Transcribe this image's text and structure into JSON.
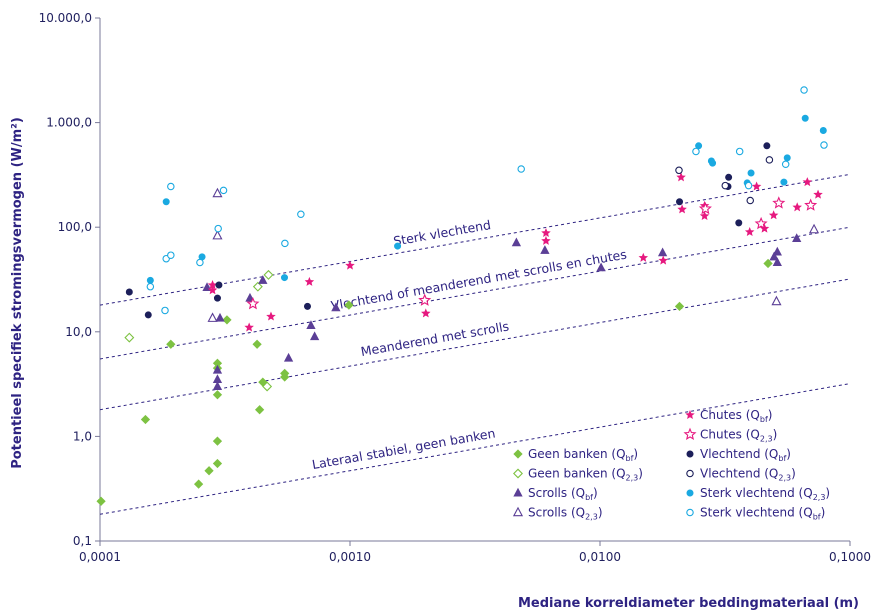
{
  "chart_data": {
    "type": "scatter",
    "x_scale": "log",
    "y_scale": "log",
    "xlabel": "Mediane korreldiameter beddingmateriaal (m)",
    "ylabel": "Potentieel specifiek stromingsvermogen (W/m²)",
    "xlim": [
      0.0001,
      0.1
    ],
    "ylim": [
      0.1,
      10000
    ],
    "x_ticks": [
      {
        "value": 0.0001,
        "label": "0,0001"
      },
      {
        "value": 0.001,
        "label": "0,0010"
      },
      {
        "value": 0.01,
        "label": "0,0100"
      },
      {
        "value": 0.1,
        "label": "0,1000"
      }
    ],
    "y_ticks": [
      {
        "value": 0.1,
        "label": "0,1"
      },
      {
        "value": 1,
        "label": "1,0"
      },
      {
        "value": 10,
        "label": "10,0"
      },
      {
        "value": 100,
        "label": "100,0"
      },
      {
        "value": 1000,
        "label": "1.000,0"
      },
      {
        "value": 10000,
        "label": "10.000,0"
      }
    ],
    "threshold_lines": [
      {
        "label": "Sterk vlechtend",
        "x": [
          0.0001,
          0.1
        ],
        "y": [
          18,
          320
        ]
      },
      {
        "label": "Vlechtend of meanderend met scrolls en chutes",
        "x": [
          0.0001,
          0.1
        ],
        "y": [
          5.5,
          100
        ]
      },
      {
        "label": "Meanderend met scrolls",
        "x": [
          0.0001,
          0.1
        ],
        "y": [
          1.8,
          32
        ]
      },
      {
        "label": "Lateraal stabiel, geen banken",
        "x": [
          0.0001,
          0.1
        ],
        "y": [
          0.18,
          3.2
        ]
      }
    ],
    "series": [
      {
        "name": "Geen banken",
        "name_sub": "bf",
        "color": "#7dc242",
        "marker": "diamond",
        "filled": true,
        "points": [
          [
            0.000101,
            0.24
          ],
          [
            0.000152,
            1.45
          ],
          [
            0.000192,
            7.6
          ],
          [
            0.000248,
            0.35
          ],
          [
            0.000273,
            0.47
          ],
          [
            0.000295,
            0.55
          ],
          [
            0.000295,
            0.9
          ],
          [
            0.000295,
            2.5
          ],
          [
            0.000295,
            4.5
          ],
          [
            0.000295,
            5.0
          ],
          [
            0.000322,
            13.0
          ],
          [
            0.000425,
            7.6
          ],
          [
            0.000435,
            1.8
          ],
          [
            0.000448,
            3.3
          ],
          [
            0.000548,
            3.7
          ],
          [
            0.000548,
            4.0
          ],
          [
            0.00099,
            18.0
          ],
          [
            0.0208,
            17.5
          ],
          [
            0.047,
            45.0
          ]
        ]
      },
      {
        "name": "Geen banken",
        "name_sub": "2,3",
        "color": "#7dc242",
        "marker": "diamond",
        "filled": false,
        "points": [
          [
            0.000131,
            8.8
          ],
          [
            0.000428,
            27.0
          ],
          [
            0.000466,
            3.0
          ],
          [
            0.000472,
            35.0
          ]
        ]
      },
      {
        "name": "Scrolls",
        "name_sub": "bf",
        "color": "#5b3f96",
        "marker": "triangle",
        "filled": true,
        "points": [
          [
            0.000268,
            26.5
          ],
          [
            0.000295,
            3.0
          ],
          [
            0.000295,
            3.5
          ],
          [
            0.000295,
            4.3
          ],
          [
            0.000302,
            13.5
          ],
          [
            0.000398,
            21.0
          ],
          [
            0.000448,
            31.0
          ],
          [
            0.000568,
            5.6
          ],
          [
            0.000698,
            11.5
          ],
          [
            0.000722,
            9.0
          ],
          [
            0.000878,
            17.0
          ],
          [
            0.00463,
            71.0
          ],
          [
            0.00602,
            60.0
          ],
          [
            0.0101,
            41.0
          ],
          [
            0.0178,
            57.0
          ],
          [
            0.0497,
            52.0
          ],
          [
            0.0512,
            46.0
          ],
          [
            0.0512,
            58.0
          ],
          [
            0.0612,
            78.0
          ]
        ]
      },
      {
        "name": "Scrolls",
        "name_sub": "2,3",
        "color": "#5b3f96",
        "marker": "triangle",
        "filled": false,
        "points": [
          [
            0.000282,
            13.5
          ],
          [
            0.000295,
            210.0
          ],
          [
            0.000295,
            83.0
          ],
          [
            0.0508,
            19.5
          ],
          [
            0.0718,
            95.0
          ]
        ]
      },
      {
        "name": "Chutes",
        "name_sub": "bf",
        "color": "#e6197f",
        "marker": "star",
        "filled": true,
        "points": [
          [
            0.000282,
            28.0
          ],
          [
            0.000282,
            25.0
          ],
          [
            0.000395,
            11.0
          ],
          [
            0.000483,
            14.0
          ],
          [
            0.000688,
            30.0
          ],
          [
            0.001,
            43.0
          ],
          [
            0.00201,
            15.0
          ],
          [
            0.00608,
            88.0
          ],
          [
            0.00608,
            74.0
          ],
          [
            0.0149,
            51.0
          ],
          [
            0.0179,
            48.0
          ],
          [
            0.0211,
            300.0
          ],
          [
            0.0213,
            148.0
          ],
          [
            0.0262,
            160.0
          ],
          [
            0.0262,
            128.0
          ],
          [
            0.0397,
            90.0
          ],
          [
            0.0423,
            245.0
          ],
          [
            0.0455,
            97.0
          ],
          [
            0.0495,
            130.0
          ],
          [
            0.0615,
            155.0
          ],
          [
            0.0675,
            270.0
          ],
          [
            0.0745,
            205.0
          ]
        ]
      },
      {
        "name": "Chutes",
        "name_sub": "2,3",
        "color": "#e6197f",
        "marker": "star",
        "filled": false,
        "points": [
          [
            0.000409,
            18.5
          ],
          [
            0.00199,
            20.0
          ],
          [
            0.0264,
            150.0
          ],
          [
            0.0441,
            108.0
          ],
          [
            0.0519,
            170.0
          ],
          [
            0.0696,
            162.0
          ]
        ]
      },
      {
        "name": "Vlechtend",
        "name_sub": "bf",
        "color": "#1c1f5a",
        "marker": "circle",
        "filled": true,
        "points": [
          [
            0.000131,
            24.0
          ],
          [
            0.000156,
            14.5
          ],
          [
            0.000295,
            21.0
          ],
          [
            0.000299,
            28.0
          ],
          [
            0.000676,
            17.5
          ],
          [
            0.0208,
            175.0
          ],
          [
            0.0325,
            245.0
          ],
          [
            0.0327,
            300.0
          ],
          [
            0.0359,
            110.0
          ],
          [
            0.0465,
            600.0
          ]
        ]
      },
      {
        "name": "Vlechtend",
        "name_sub": "2,3",
        "color": "#1c1f5a",
        "marker": "circle",
        "filled": false,
        "points": [
          [
            0.0207,
            350.0
          ],
          [
            0.0317,
            250.0
          ],
          [
            0.0399,
            180.0
          ],
          [
            0.0476,
            440.0
          ]
        ]
      },
      {
        "name": "Sterk vlechtend",
        "name_sub": "2,3",
        "color": "#1aa9e1",
        "marker": "circle",
        "filled": true,
        "points": [
          [
            0.000159,
            31.0
          ],
          [
            0.000184,
            175.0
          ],
          [
            0.000256,
            52.0
          ],
          [
            0.000547,
            33.0
          ],
          [
            0.00155,
            66.0
          ],
          [
            0.0248,
            600.0
          ],
          [
            0.0279,
            430.0
          ],
          [
            0.0282,
            410.0
          ],
          [
            0.0388,
            265.0
          ],
          [
            0.0402,
            330.0
          ],
          [
            0.0544,
            270.0
          ],
          [
            0.0561,
            460.0
          ],
          [
            0.0662,
            1100.0
          ],
          [
            0.0782,
            840.0
          ]
        ]
      },
      {
        "name": "Sterk vlechtend",
        "name_sub": "bf",
        "color": "#1aa9e1",
        "marker": "circle",
        "filled": false,
        "points": [
          [
            0.000159,
            27.0
          ],
          [
            0.000182,
            16.0
          ],
          [
            0.000184,
            50.0
          ],
          [
            0.000192,
            54.0
          ],
          [
            0.000192,
            245.0
          ],
          [
            0.000251,
            46.0
          ],
          [
            0.000297,
            97.0
          ],
          [
            0.000312,
            225.0
          ],
          [
            0.000549,
            70.0
          ],
          [
            0.000636,
            133.0
          ],
          [
            0.00484,
            360.0
          ],
          [
            0.0242,
            530.0
          ],
          [
            0.0362,
            530.0
          ],
          [
            0.0393,
            250.0
          ],
          [
            0.0553,
            400.0
          ],
          [
            0.0655,
            2050.0
          ],
          [
            0.0787,
            610.0
          ]
        ]
      }
    ],
    "legend": {
      "placement": "bottom-right",
      "left_column": [
        2,
        3,
        4,
        5
      ],
      "right_column": [
        6,
        7,
        8,
        9,
        10,
        11
      ]
    }
  }
}
